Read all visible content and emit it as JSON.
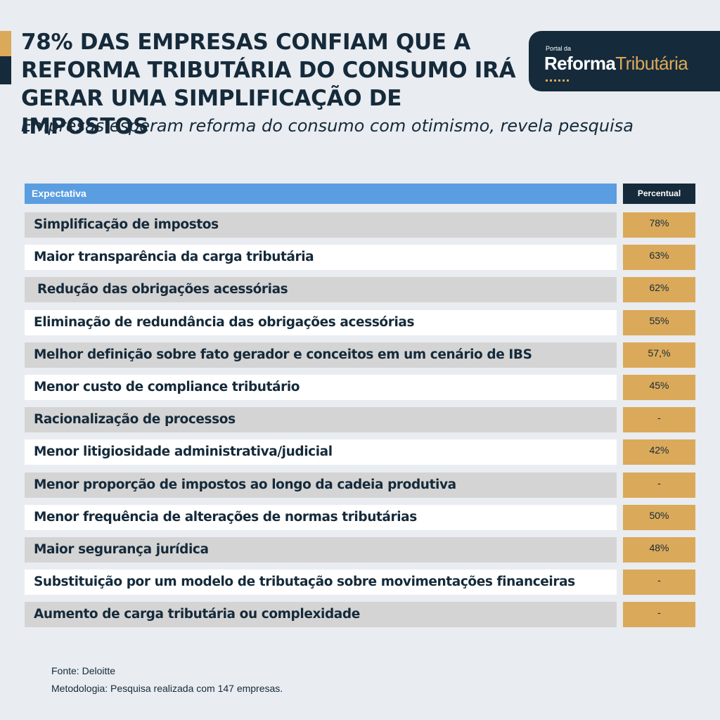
{
  "title": "78% DAS EMPRESAS CONFIAM QUE A REFORMA TRIBUTÁRIA DO CONSUMO IRÁ GERAR UMA SIMPLIFICAÇÃO DE IMPOSTOS",
  "subtitle": "Empresas esperam reforma do consumo com otimismo, revela pesquisa",
  "logo": {
    "small": "Portal da",
    "word1": "Reforma",
    "word2": "Tributária"
  },
  "table": {
    "header_expectation": "Expectativa",
    "header_percent": "Percentual",
    "rows": [
      {
        "label": "Simplificação de impostos",
        "value": "78%"
      },
      {
        "label": "Maior transparência da carga tributária",
        "value": "63%"
      },
      {
        "label": "Redução das obrigações acessórias",
        "value": "62%"
      },
      {
        "label": "Eliminação de redundância das obrigações acessórias",
        "value": "55%"
      },
      {
        "label": "Melhor definição sobre fato gerador e conceitos em um cenário de IBS",
        "value": "57,%"
      },
      {
        "label": "Menor custo de compliance tributário",
        "value": "45%"
      },
      {
        "label": "Racionalização de processos",
        "value": "-"
      },
      {
        "label": "Menor litigiosidade administrativa/judicial",
        "value": "42%"
      },
      {
        "label": "Menor proporção de impostos ao longo da cadeia produtiva",
        "value": "-"
      },
      {
        "label": "Menor frequência de alterações de normas tributárias",
        "value": "50%"
      },
      {
        "label": "Maior segurança jurídica",
        "value": "48%"
      },
      {
        "label": "Substituição por um modelo de tributação sobre movimentações financeiras",
        "value": "-"
      },
      {
        "label": "Aumento de carga tributária ou complexidade",
        "value": "-"
      }
    ]
  },
  "footer": {
    "source": "Fonte: Deloitte",
    "methodology": "Metodologia: Pesquisa realizada com 147 empresas."
  },
  "colors": {
    "navy": "#152a3a",
    "gold": "#dba95a",
    "blue_header": "#5a9de0",
    "row_gray": "#d4d4d4",
    "row_white": "#ffffff",
    "background": "#e9ecf0"
  }
}
